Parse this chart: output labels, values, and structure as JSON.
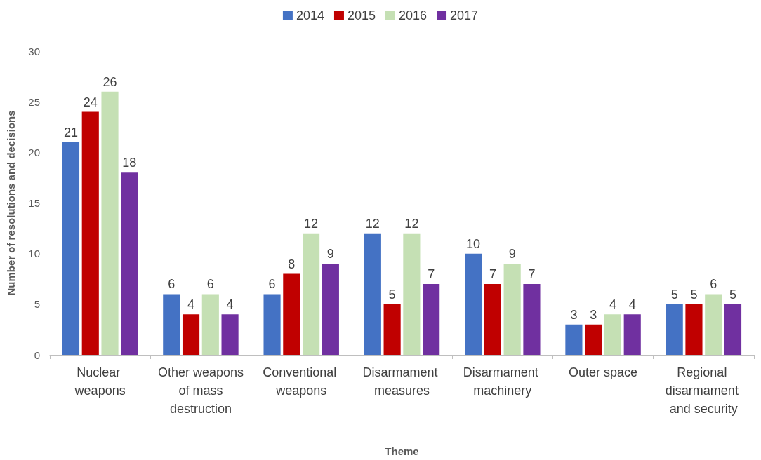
{
  "chart_data": {
    "type": "bar",
    "xlabel": "Theme",
    "ylabel": "Number of resolutions and decisions",
    "categories": [
      "Nuclear weapons",
      "Other weapons of mass destruction",
      "Conventional weapons",
      "Disarmament measures",
      "Disarmament machinery",
      "Outer space",
      "Regional disarmament and security"
    ],
    "series": [
      {
        "name": "2014",
        "color": "#4472c4",
        "values": [
          21,
          6,
          6,
          12,
          10,
          3,
          5
        ]
      },
      {
        "name": "2015",
        "color": "#c00000",
        "values": [
          24,
          4,
          8,
          5,
          7,
          3,
          5
        ]
      },
      {
        "name": "2016",
        "color": "#c5e0b4",
        "values": [
          26,
          6,
          12,
          12,
          9,
          4,
          6
        ]
      },
      {
        "name": "2017",
        "color": "#7030a0",
        "values": [
          18,
          4,
          9,
          7,
          7,
          4,
          5
        ]
      }
    ],
    "ylim": [
      0,
      30
    ],
    "yticks": [
      0,
      5,
      10,
      15,
      20,
      25,
      30
    ],
    "grid": false,
    "legend": "top",
    "data_labels": true
  }
}
